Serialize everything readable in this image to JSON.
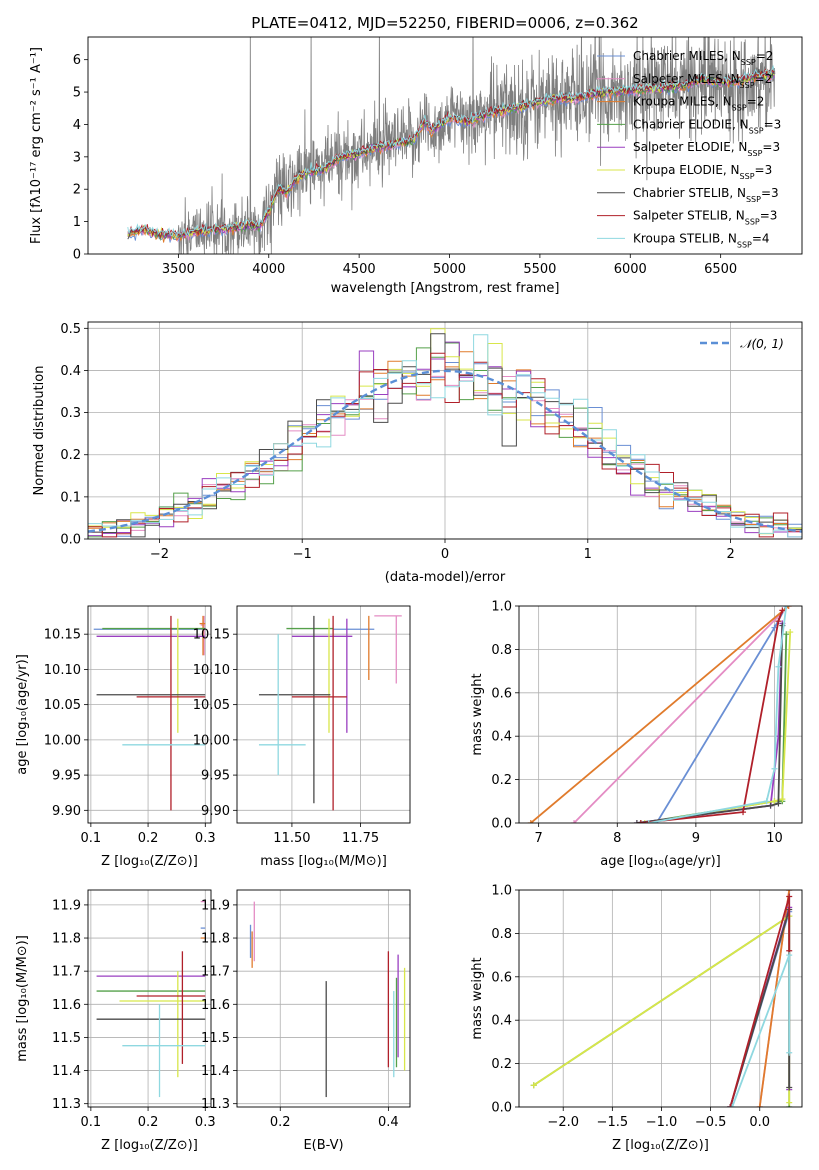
{
  "figure": {
    "title": "PLATE=0412, MJD=52250, FIBERID=0006, z=0.362"
  },
  "colors": {
    "Chabrier MILES": "#6a8fd4",
    "Salpeter MILES": "#e48cc4",
    "Kroupa MILES": "#e07b2c",
    "Chabrier ELODIE": "#55a04a",
    "Salpeter ELODIE": "#9a3fc0",
    "Kroupa ELODIE": "#d8e64a",
    "Chabrier STELIB": "#4a4a4a",
    "Salpeter STELIB": "#b0202a",
    "Kroupa STELIB": "#8fd8e0",
    "data": "#7f7f7f",
    "normal": "#5b8fd6"
  },
  "chart_data": [
    {
      "id": "spectrum",
      "type": "line",
      "title": "PLATE=0412, MJD=52250, FIBERID=0006, z=0.362",
      "xlabel": "wavelength [Angstrom, rest frame]",
      "ylabel": "Flux [fλ10⁻¹⁷ erg cm⁻² s⁻¹ A⁻¹]",
      "xlim": [
        3000,
        6950
      ],
      "ylim": [
        0,
        6.7
      ],
      "xticks": [
        3500,
        4000,
        4500,
        5000,
        5500,
        6000,
        6500
      ],
      "yticks": [
        0,
        1,
        2,
        3,
        4,
        5,
        6
      ],
      "grid": false,
      "legend": "upper-right",
      "model_continuum": {
        "x": [
          3200,
          3220,
          3300,
          3400,
          3500,
          3600,
          3700,
          3800,
          3900,
          3950,
          4000,
          4050,
          4100,
          4150,
          4200,
          4300,
          4400,
          4500,
          4600,
          4700,
          4800,
          4860,
          4900,
          5000,
          5100,
          5200,
          5300,
          5400,
          5500,
          5600,
          5700,
          5800,
          5900,
          6000,
          6100,
          6200,
          6300,
          6400,
          6500,
          6600,
          6700,
          6800
        ],
        "y": [
          0.0,
          0.6,
          0.75,
          0.6,
          0.55,
          0.7,
          0.75,
          0.8,
          0.9,
          0.85,
          1.3,
          2.0,
          1.9,
          2.3,
          2.5,
          2.6,
          3.0,
          3.1,
          3.3,
          3.4,
          3.5,
          4.1,
          3.8,
          4.2,
          4.1,
          4.3,
          4.45,
          4.55,
          4.7,
          4.8,
          4.8,
          4.95,
          5.0,
          5.05,
          5.1,
          5.15,
          5.2,
          5.4,
          5.3,
          5.35,
          5.5,
          5.55
        ]
      },
      "series": [
        {
          "name": "Chabrier MILES, N_SSP=2"
        },
        {
          "name": "Salpeter MILES, N_SSP=2"
        },
        {
          "name": "Kroupa MILES, N_SSP=2"
        },
        {
          "name": "Chabrier ELODIE, N_SSP=3"
        },
        {
          "name": "Salpeter ELODIE, N_SSP=3"
        },
        {
          "name": "Kroupa ELODIE, N_SSP=3"
        },
        {
          "name": "Chabrier STELIB, N_SSP=3"
        },
        {
          "name": "Salpeter STELIB, N_SSP=3"
        },
        {
          "name": "Kroupa STELIB, N_SSP=4"
        }
      ]
    },
    {
      "id": "residuals",
      "type": "histogram",
      "xlabel": "(data-model)/error",
      "ylabel": "Normed distribution",
      "xlim": [
        -2.5,
        2.5
      ],
      "ylim": [
        0,
        0.515
      ],
      "xticks": [
        -2,
        -1,
        0,
        1,
        2
      ],
      "yticks": [
        0.0,
        0.1,
        0.2,
        0.3,
        0.4,
        0.5
      ],
      "grid": true,
      "legend": "upper-right",
      "legend_entry": "𝒩(0, 1)",
      "bin_width": 0.1
    },
    {
      "id": "age_vs_Z",
      "type": "errorbar",
      "xlabel": "Z [log₁₀(Z/Z⊙)]",
      "ylabel": "age  [log₁₀(age/yr)]",
      "xlim": [
        0.095,
        0.31
      ],
      "ylim": [
        9.882,
        10.19
      ],
      "xticks": [
        0.1,
        0.2,
        0.3
      ],
      "yticks": [
        9.9,
        9.95,
        10.0,
        10.05,
        10.1,
        10.15
      ],
      "points": [
        {
          "s": "Chabrier MILES",
          "x": 0.22,
          "xerr": [
            0.105,
            0.3
          ],
          "y": 10.157,
          "yerr": [
            10.157,
            10.157
          ]
        },
        {
          "s": "Salpeter MILES",
          "x": 0.298,
          "xerr": [
            0.292,
            0.3
          ],
          "y": 10.163,
          "yerr": [
            10.12,
            10.176
          ]
        },
        {
          "s": "Kroupa MILES",
          "x": 0.296,
          "xerr": [
            0.29,
            0.3
          ],
          "y": 10.165,
          "yerr": [
            10.12,
            10.176
          ]
        },
        {
          "s": "Chabrier ELODIE",
          "x": 0.2,
          "xerr": [
            0.12,
            0.3
          ],
          "y": 10.158,
          "yerr": [
            10.158,
            10.158
          ]
        },
        {
          "s": "Salpeter ELODIE",
          "x": 0.21,
          "xerr": [
            0.11,
            0.3
          ],
          "y": 10.147,
          "yerr": [
            10.147,
            10.147
          ]
        },
        {
          "s": "Kroupa ELODIE",
          "x": 0.252,
          "xerr": [
            0.252,
            0.252
          ],
          "y": 10.1,
          "yerr": [
            10.01,
            10.172
          ]
        },
        {
          "s": "Chabrier STELIB",
          "x": 0.2,
          "xerr": [
            0.11,
            0.3
          ],
          "y": 10.064,
          "yerr": [
            10.064,
            10.064
          ]
        },
        {
          "s": "Salpeter STELIB",
          "x": 0.24,
          "xerr": [
            0.18,
            0.3
          ],
          "y": 10.061,
          "yerr": [
            9.9,
            10.176
          ]
        },
        {
          "s": "Kroupa STELIB",
          "x": 0.22,
          "xerr": [
            0.155,
            0.3
          ],
          "y": 9.993,
          "yerr": [
            9.993,
            9.993
          ]
        }
      ]
    },
    {
      "id": "age_vs_mass",
      "type": "errorbar",
      "xlabel": "mass [log₁₀(M/M⊙)]",
      "ylabel": "",
      "xlim": [
        11.3,
        11.93
      ],
      "ylim": [
        9.882,
        10.19
      ],
      "xticks": [
        11.5,
        11.75
      ],
      "xtick_labels": [
        "11.50",
        "11.75"
      ],
      "yticks": [
        9.9,
        9.95,
        10.0,
        10.05,
        10.1,
        10.15
      ],
      "points": [
        {
          "s": "Chabrier MILES",
          "x": 11.72,
          "xerr": [
            11.65,
            11.8
          ],
          "y": 10.157,
          "yerr": [
            10.157,
            10.157
          ]
        },
        {
          "s": "Salpeter MILES",
          "x": 11.88,
          "xerr": [
            11.8,
            11.9
          ],
          "y": 10.176,
          "yerr": [
            10.08,
            10.176
          ]
        },
        {
          "s": "Kroupa MILES",
          "x": 11.78,
          "xerr": [
            11.78,
            11.78
          ],
          "y": 10.15,
          "yerr": [
            10.085,
            10.176
          ]
        },
        {
          "s": "Chabrier ELODIE",
          "x": 11.55,
          "xerr": [
            11.48,
            11.65
          ],
          "y": 10.158,
          "yerr": [
            10.158,
            10.158
          ]
        },
        {
          "s": "Salpeter ELODIE",
          "x": 11.7,
          "xerr": [
            11.5,
            11.72
          ],
          "y": 10.147,
          "yerr": [
            10.01,
            10.172
          ]
        },
        {
          "s": "Kroupa ELODIE",
          "x": 11.635,
          "xerr": [
            11.635,
            11.635
          ],
          "y": 10.1,
          "yerr": [
            10.01,
            10.172
          ]
        },
        {
          "s": "Chabrier STELIB",
          "x": 11.58,
          "xerr": [
            11.38,
            11.64
          ],
          "y": 10.064,
          "yerr": [
            9.91,
            10.176
          ]
        },
        {
          "s": "Salpeter STELIB",
          "x": 11.65,
          "xerr": [
            11.5,
            11.7
          ],
          "y": 10.061,
          "yerr": [
            9.9,
            10.176
          ]
        },
        {
          "s": "Kroupa STELIB",
          "x": 11.45,
          "xerr": [
            11.38,
            11.55
          ],
          "y": 9.993,
          "yerr": [
            9.95,
            10.15
          ]
        }
      ]
    },
    {
      "id": "weight_vs_age",
      "type": "line",
      "xlabel": "age  [log₁₀(age/yr)]",
      "ylabel": "mass weight",
      "xlim": [
        6.75,
        10.35
      ],
      "ylim": [
        0,
        1
      ],
      "xticks": [
        7,
        8,
        9,
        10
      ],
      "yticks": [
        0.0,
        0.2,
        0.4,
        0.6,
        0.8,
        1.0
      ],
      "grid": true,
      "series": [
        {
          "s": "Chabrier MILES",
          "x": [
            8.5,
            10.0,
            10.15
          ],
          "y": [
            0.0,
            0.9,
            1.0
          ]
        },
        {
          "s": "Salpeter MILES",
          "x": [
            7.45,
            10.18
          ],
          "y": [
            0.0,
            1.0
          ]
        },
        {
          "s": "Kroupa MILES",
          "x": [
            6.9,
            10.18
          ],
          "y": [
            0.0,
            1.0
          ]
        },
        {
          "s": "Chabrier ELODIE",
          "x": [
            8.3,
            10.0,
            10.1,
            10.15
          ],
          "y": [
            0.0,
            0.1,
            0.1,
            0.87
          ]
        },
        {
          "s": "Salpeter ELODIE",
          "x": [
            8.25,
            9.95,
            10.05,
            10.1
          ],
          "y": [
            0.0,
            0.08,
            0.4,
            0.92
          ]
        },
        {
          "s": "Kroupa ELODIE",
          "x": [
            8.35,
            10.0,
            10.1,
            10.2
          ],
          "y": [
            0.0,
            0.1,
            0.11,
            0.88
          ]
        },
        {
          "s": "Chabrier STELIB",
          "x": [
            8.25,
            9.95,
            10.05,
            10.1
          ],
          "y": [
            0.0,
            0.08,
            0.09,
            0.91
          ]
        },
        {
          "s": "Salpeter STELIB",
          "x": [
            8.3,
            9.6,
            10.05,
            10.1
          ],
          "y": [
            0.0,
            0.05,
            0.93,
            0.98
          ]
        },
        {
          "s": "Kroupa STELIB",
          "x": [
            8.4,
            9.9,
            10.0,
            10.05,
            10.15
          ],
          "y": [
            0.0,
            0.1,
            0.25,
            0.72,
            1.0
          ]
        }
      ]
    },
    {
      "id": "mass_vs_Z",
      "type": "errorbar",
      "xlabel": "Z [log₁₀(Z/Z⊙)]",
      "ylabel": "mass [log₁₀(M/M⊙)]",
      "xlim": [
        0.095,
        0.31
      ],
      "ylim": [
        11.29,
        11.945
      ],
      "xticks": [
        0.1,
        0.2,
        0.3
      ],
      "yticks": [
        11.3,
        11.4,
        11.5,
        11.6,
        11.7,
        11.8,
        11.9
      ],
      "points": [
        {
          "s": "Chabrier MILES",
          "x": 0.298,
          "xerr": [
            0.292,
            0.3
          ],
          "y": 11.83,
          "yerr": [
            11.83,
            11.83
          ]
        },
        {
          "s": "Salpeter MILES",
          "x": 0.298,
          "xerr": [
            0.292,
            0.3
          ],
          "y": 11.91,
          "yerr": [
            11.91,
            11.91
          ]
        },
        {
          "s": "Kroupa MILES",
          "x": 0.298,
          "xerr": [
            0.292,
            0.3
          ],
          "y": 11.8,
          "yerr": [
            11.8,
            11.8
          ]
        },
        {
          "s": "Chabrier ELODIE",
          "x": 0.2,
          "xerr": [
            0.11,
            0.3
          ],
          "y": 11.64,
          "yerr": [
            11.64,
            11.64
          ]
        },
        {
          "s": "Salpeter ELODIE",
          "x": 0.2,
          "xerr": [
            0.11,
            0.3
          ],
          "y": 11.685,
          "yerr": [
            11.685,
            11.685
          ]
        },
        {
          "s": "Kroupa ELODIE",
          "x": 0.252,
          "xerr": [
            0.15,
            0.3
          ],
          "y": 11.61,
          "yerr": [
            11.38,
            11.7
          ]
        },
        {
          "s": "Chabrier STELIB",
          "x": 0.2,
          "xerr": [
            0.11,
            0.3
          ],
          "y": 11.555,
          "yerr": [
            11.555,
            11.555
          ]
        },
        {
          "s": "Salpeter STELIB",
          "x": 0.26,
          "xerr": [
            0.18,
            0.3
          ],
          "y": 11.625,
          "yerr": [
            11.42,
            11.76
          ]
        },
        {
          "s": "Kroupa STELIB",
          "x": 0.22,
          "xerr": [
            0.155,
            0.3
          ],
          "y": 11.475,
          "yerr": [
            11.32,
            11.6
          ]
        }
      ]
    },
    {
      "id": "mass_vs_EBV",
      "type": "errorbar",
      "xlabel": "E(B-V)",
      "ylabel": "",
      "xlim": [
        0.12,
        0.44
      ],
      "ylim": [
        11.29,
        11.945
      ],
      "xticks": [
        0.2,
        0.4
      ],
      "yticks": [
        11.3,
        11.4,
        11.5,
        11.6,
        11.7,
        11.8,
        11.9
      ],
      "points": [
        {
          "s": "Chabrier MILES",
          "x": 0.145,
          "xerr": [
            0.145,
            0.145
          ],
          "y": 11.79,
          "yerr": [
            11.74,
            11.84
          ]
        },
        {
          "s": "Salpeter MILES",
          "x": 0.152,
          "xerr": [
            0.152,
            0.152
          ],
          "y": 11.82,
          "yerr": [
            11.73,
            11.91
          ]
        },
        {
          "s": "Kroupa MILES",
          "x": 0.148,
          "xerr": [
            0.148,
            0.148
          ],
          "y": 11.76,
          "yerr": [
            11.71,
            11.82
          ]
        },
        {
          "s": "Chabrier ELODIE",
          "x": 0.415,
          "xerr": [
            0.415,
            0.415
          ],
          "y": 11.55,
          "yerr": [
            11.41,
            11.68
          ]
        },
        {
          "s": "Salpeter ELODIE",
          "x": 0.418,
          "xerr": [
            0.418,
            0.418
          ],
          "y": 11.6,
          "yerr": [
            11.44,
            11.75
          ]
        },
        {
          "s": "Kroupa ELODIE",
          "x": 0.43,
          "xerr": [
            0.43,
            0.43
          ],
          "y": 11.55,
          "yerr": [
            11.4,
            11.71
          ]
        },
        {
          "s": "Chabrier STELIB",
          "x": 0.285,
          "xerr": [
            0.285,
            0.285
          ],
          "y": 11.5,
          "yerr": [
            11.32,
            11.67
          ]
        },
        {
          "s": "Salpeter STELIB",
          "x": 0.4,
          "xerr": [
            0.4,
            0.4
          ],
          "y": 11.59,
          "yerr": [
            11.41,
            11.76
          ]
        },
        {
          "s": "Kroupa STELIB",
          "x": 0.41,
          "xerr": [
            0.41,
            0.41
          ],
          "y": 11.5,
          "yerr": [
            11.38,
            11.64
          ]
        }
      ]
    },
    {
      "id": "weight_vs_Z",
      "type": "line",
      "xlabel": "Z [log₁₀(Z/Z⊙)]",
      "ylabel": "mass weight",
      "xlim": [
        -2.45,
        0.43
      ],
      "ylim": [
        0,
        1
      ],
      "xticks": [
        -2.0,
        -1.5,
        -1.0,
        -0.5,
        0.0
      ],
      "yticks": [
        0.0,
        0.2,
        0.4,
        0.6,
        0.8,
        1.0
      ],
      "grid": true,
      "series": [
        {
          "s": "Chabrier MILES",
          "x": [
            -0.3,
            0.3,
            0.3
          ],
          "y": [
            0.0,
            0.9,
            1.0
          ]
        },
        {
          "s": "Salpeter MILES",
          "x": [
            0.0,
            0.3
          ],
          "y": [
            0.0,
            1.0
          ]
        },
        {
          "s": "Kroupa MILES",
          "x": [
            0.0,
            0.3
          ],
          "y": [
            0.0,
            1.0
          ]
        },
        {
          "s": "Chabrier ELODIE",
          "x": [
            -2.3,
            0.3,
            0.3
          ],
          "y": [
            0.1,
            0.88,
            0.0
          ]
        },
        {
          "s": "Salpeter ELODIE",
          "x": [
            -0.3,
            0.3,
            0.3
          ],
          "y": [
            0.0,
            0.92,
            0.08
          ]
        },
        {
          "s": "Kroupa ELODIE",
          "x": [
            -2.3,
            0.3,
            0.3
          ],
          "y": [
            0.1,
            0.88,
            0.02
          ]
        },
        {
          "s": "Chabrier STELIB",
          "x": [
            -0.3,
            0.3,
            0.3
          ],
          "y": [
            0.0,
            0.91,
            0.09
          ]
        },
        {
          "s": "Salpeter STELIB",
          "x": [
            -0.3,
            0.3,
            0.3
          ],
          "y": [
            0.0,
            0.97,
            0.72
          ]
        },
        {
          "s": "Kroupa STELIB",
          "x": [
            -0.28,
            0.3,
            0.3
          ],
          "y": [
            0.0,
            0.7,
            0.25
          ]
        }
      ]
    }
  ]
}
